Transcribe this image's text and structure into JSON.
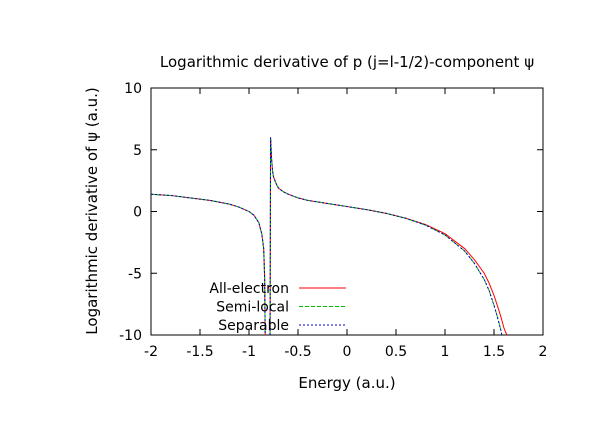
{
  "chart_data": {
    "type": "line",
    "title": "Logarithmic derivative of p (j=l-1/2)-component ψ",
    "xlabel": "Energy (a.u.)",
    "ylabel": "Logarithmic derivative of ψ (a.u.)",
    "xlim": [
      -2,
      2
    ],
    "ylim": [
      -10,
      10
    ],
    "x_ticks": [
      "-2",
      "-1.5",
      "-1",
      "-0.5",
      "0",
      "0.5",
      "1",
      "1.5",
      "2"
    ],
    "y_ticks": [
      "10",
      "5",
      "0",
      "-5",
      "-10"
    ],
    "grid": false,
    "legend_position": "bottom-left",
    "series": [
      {
        "name": "All-electron",
        "color": "#ff0000",
        "style": "solid",
        "x": [
          -2.0,
          -1.8,
          -1.6,
          -1.4,
          -1.2,
          -1.1,
          -1.0,
          -0.95,
          -0.9,
          -0.87,
          -0.85,
          -0.84,
          -0.835,
          null,
          -0.785,
          -0.78,
          -0.775,
          -0.77,
          -0.76,
          -0.75,
          -0.72,
          -0.7,
          -0.65,
          -0.6,
          -0.5,
          -0.4,
          -0.2,
          0.0,
          0.2,
          0.4,
          0.6,
          0.8,
          1.0,
          1.2,
          1.3,
          1.4,
          1.45,
          1.5,
          1.55,
          1.58,
          1.6,
          1.62,
          1.635
        ],
        "y": [
          1.4,
          1.3,
          1.1,
          0.9,
          0.6,
          0.35,
          0.0,
          -0.3,
          -0.9,
          -1.8,
          -3.0,
          -5.5,
          -10.0,
          null,
          -10.0,
          6.0,
          5.2,
          4.3,
          3.3,
          2.8,
          2.2,
          1.9,
          1.6,
          1.4,
          1.1,
          0.9,
          0.65,
          0.4,
          0.15,
          -0.15,
          -0.55,
          -1.05,
          -1.8,
          -3.0,
          -3.9,
          -5.0,
          -5.8,
          -6.8,
          -8.0,
          -8.8,
          -9.4,
          -9.8,
          -10.0
        ]
      },
      {
        "name": "Semi-local",
        "color": "#00c000",
        "style": "dashed",
        "x": [
          -2.0,
          -1.8,
          -1.6,
          -1.4,
          -1.2,
          -1.1,
          -1.0,
          -0.95,
          -0.9,
          -0.87,
          -0.85,
          -0.84,
          -0.835,
          null,
          -0.785,
          -0.78,
          -0.775,
          -0.77,
          -0.76,
          -0.75,
          -0.72,
          -0.7,
          -0.65,
          -0.6,
          -0.5,
          -0.4,
          -0.2,
          0.0,
          0.2,
          0.4,
          0.6,
          0.8,
          1.0,
          1.2,
          1.3,
          1.4,
          1.45,
          1.5,
          1.53,
          1.55,
          1.57,
          1.58
        ],
        "y": [
          1.4,
          1.3,
          1.1,
          0.9,
          0.6,
          0.35,
          0.0,
          -0.3,
          -0.9,
          -1.8,
          -3.0,
          -5.5,
          -10.0,
          null,
          -10.0,
          6.0,
          5.2,
          4.3,
          3.3,
          2.8,
          2.2,
          1.9,
          1.6,
          1.4,
          1.1,
          0.9,
          0.65,
          0.4,
          0.15,
          -0.15,
          -0.55,
          -1.1,
          -1.9,
          -3.2,
          -4.2,
          -5.5,
          -6.4,
          -7.6,
          -8.4,
          -9.0,
          -9.6,
          -10.0
        ]
      },
      {
        "name": "Separable",
        "color": "#0000cc",
        "style": "dotted",
        "x": [
          -2.0,
          -1.8,
          -1.6,
          -1.4,
          -1.2,
          -1.1,
          -1.0,
          -0.95,
          -0.9,
          -0.87,
          -0.85,
          -0.84,
          -0.835,
          null,
          -0.785,
          -0.78,
          -0.775,
          -0.77,
          -0.76,
          -0.75,
          -0.72,
          -0.7,
          -0.65,
          -0.6,
          -0.5,
          -0.4,
          -0.2,
          0.0,
          0.2,
          0.4,
          0.6,
          0.8,
          1.0,
          1.2,
          1.3,
          1.4,
          1.45,
          1.5,
          1.53,
          1.55,
          1.57,
          1.58
        ],
        "y": [
          1.4,
          1.3,
          1.1,
          0.9,
          0.6,
          0.35,
          0.0,
          -0.3,
          -0.9,
          -1.8,
          -3.0,
          -5.5,
          -10.0,
          null,
          -10.0,
          6.0,
          5.2,
          4.3,
          3.3,
          2.8,
          2.2,
          1.9,
          1.6,
          1.4,
          1.1,
          0.9,
          0.65,
          0.4,
          0.15,
          -0.15,
          -0.55,
          -1.1,
          -1.9,
          -3.2,
          -4.2,
          -5.5,
          -6.4,
          -7.6,
          -8.4,
          -9.0,
          -9.6,
          -10.0
        ]
      }
    ]
  }
}
